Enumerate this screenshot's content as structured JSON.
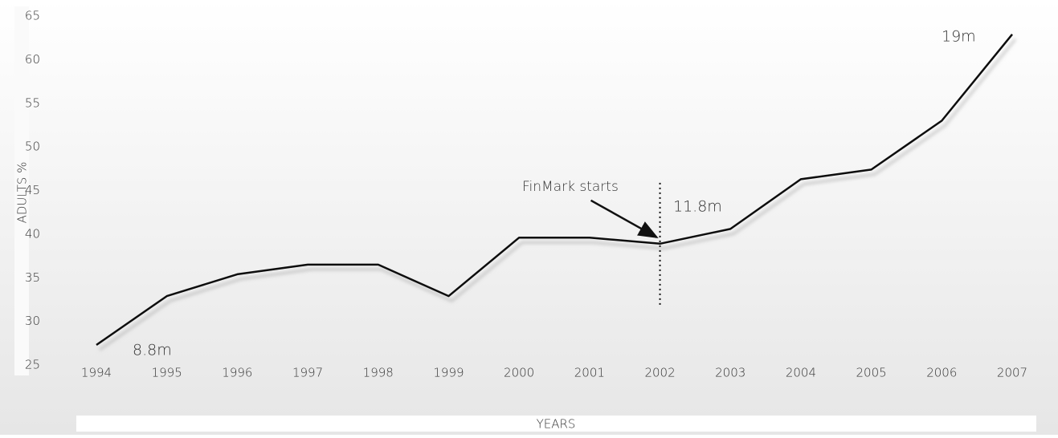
{
  "chart_data": {
    "type": "line",
    "ylabel": "ADULTS %",
    "xlabel": "YEARS",
    "categories": [
      "1994",
      "1995",
      "1996",
      "1997",
      "1998",
      "1999",
      "2000",
      "2001",
      "2002",
      "2003",
      "2004",
      "2005",
      "2006",
      "2007"
    ],
    "values": [
      27.3,
      32.9,
      35.4,
      36.5,
      36.5,
      32.9,
      39.6,
      39.6,
      38.9,
      40.6,
      46.3,
      47.4,
      53.0,
      62.9
    ],
    "color": "#111111",
    "ylim": [
      25,
      65
    ],
    "yticks": [
      25,
      30,
      35,
      40,
      45,
      50,
      55,
      60,
      65
    ],
    "annotations": [
      "8.8m",
      "FinMark starts",
      "11.8m",
      "19m"
    ]
  }
}
